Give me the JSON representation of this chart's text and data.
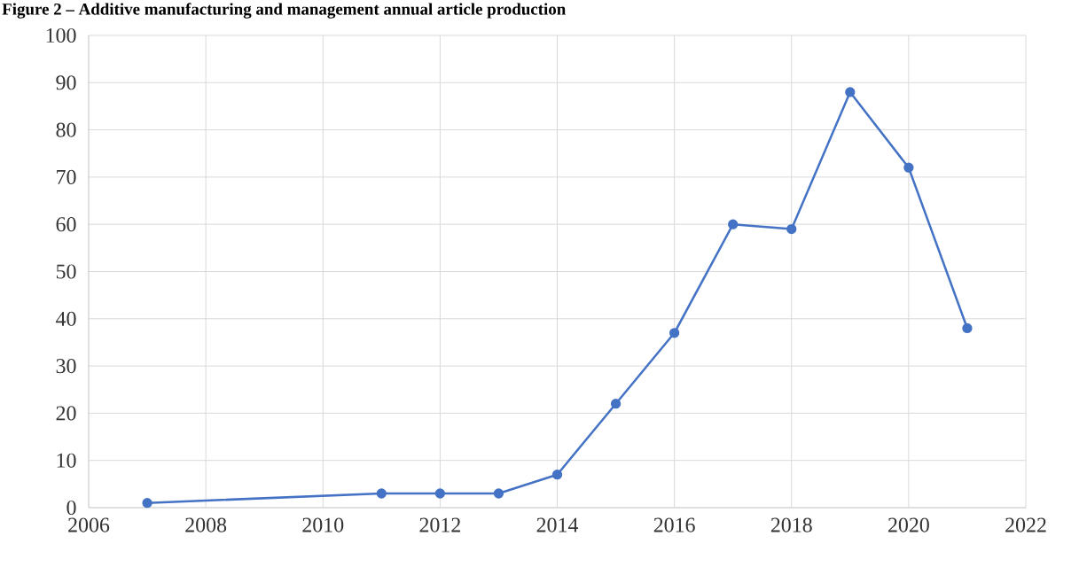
{
  "chart_data": {
    "type": "line",
    "title": "Figure 2 – Additive manufacturing and management annual article production",
    "x": [
      2007,
      2011,
      2012,
      2013,
      2014,
      2015,
      2016,
      2017,
      2018,
      2019,
      2020,
      2021
    ],
    "values": [
      1,
      3,
      3,
      3,
      7,
      22,
      37,
      60,
      59,
      88,
      72,
      38
    ],
    "color": "#4472c4",
    "marker": "circle",
    "line_style": "solid",
    "xlim": [
      2006,
      2022
    ],
    "xticks": [
      2006,
      2008,
      2010,
      2012,
      2014,
      2016,
      2018,
      2020,
      2022
    ],
    "ylim": [
      0,
      100
    ],
    "yticks": [
      0,
      10,
      20,
      30,
      40,
      50,
      60,
      70,
      80,
      90,
      100
    ],
    "grid": true
  }
}
